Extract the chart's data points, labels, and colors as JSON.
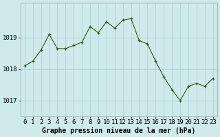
{
  "x": [
    0,
    1,
    2,
    3,
    4,
    5,
    6,
    7,
    8,
    9,
    10,
    11,
    12,
    13,
    14,
    15,
    16,
    17,
    18,
    19,
    20,
    21,
    22,
    23
  ],
  "y": [
    1018.1,
    1018.25,
    1018.6,
    1019.1,
    1018.65,
    1018.65,
    1018.75,
    1018.85,
    1019.35,
    1019.15,
    1019.5,
    1019.3,
    1019.55,
    1019.6,
    1018.9,
    1018.8,
    1018.25,
    1017.75,
    1017.35,
    1017.0,
    1017.45,
    1017.55,
    1017.45,
    1017.7
  ],
  "line_color": "#2d5a1b",
  "marker_color": "#2d5a1b",
  "bg_color": "#ceeaea",
  "grid_color": "#aed4d4",
  "ylabel_ticks": [
    1017,
    1018,
    1019
  ],
  "xlabel_label": "Graphe pression niveau de la mer (hPa)",
  "ylim": [
    1016.5,
    1020.1
  ],
  "xlim": [
    -0.5,
    23.5
  ],
  "tick_fontsize": 6.5,
  "label_fontsize": 7.0
}
